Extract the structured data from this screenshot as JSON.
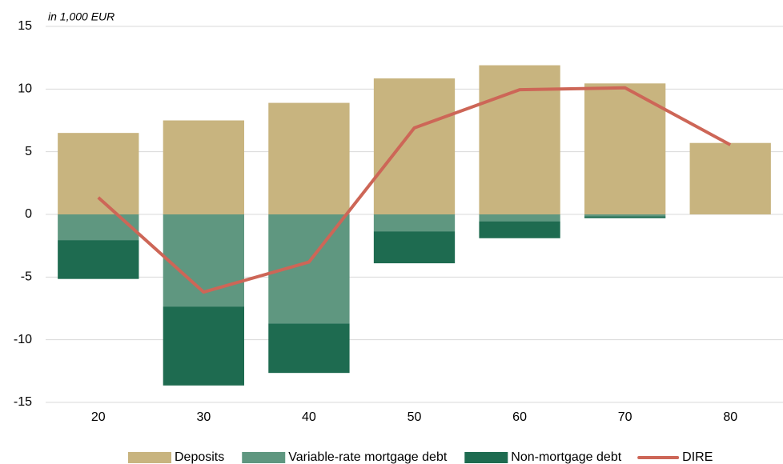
{
  "chart_data": {
    "type": "bar",
    "stacked": true,
    "annotation": "in 1,000 EUR",
    "categories": [
      "20",
      "30",
      "40",
      "50",
      "60",
      "70",
      "80"
    ],
    "series": [
      {
        "name": "Deposits",
        "color": "#c8b47f",
        "values": [
          6.5,
          7.5,
          8.9,
          10.85,
          11.9,
          10.45,
          5.7
        ]
      },
      {
        "name": "Variable-rate mortgage debt",
        "color": "#5f9780",
        "values": [
          -2.05,
          -7.35,
          -8.7,
          -1.35,
          -0.55,
          -0.15,
          0
        ]
      },
      {
        "name": "Non-mortgage debt",
        "color": "#1e6b50",
        "values": [
          -3.1,
          -6.3,
          -3.95,
          -2.55,
          -1.35,
          -0.15,
          0
        ]
      },
      {
        "name": "DIRE",
        "type": "line",
        "color": "#cd6657",
        "values": [
          1.35,
          -6.2,
          -3.8,
          6.9,
          9.95,
          10.1,
          5.55
        ]
      }
    ],
    "ylim": [
      -15,
      15
    ],
    "yticks": [
      -15,
      -10,
      -5,
      0,
      5,
      10,
      15
    ],
    "grid": true,
    "legend": "bottom"
  }
}
